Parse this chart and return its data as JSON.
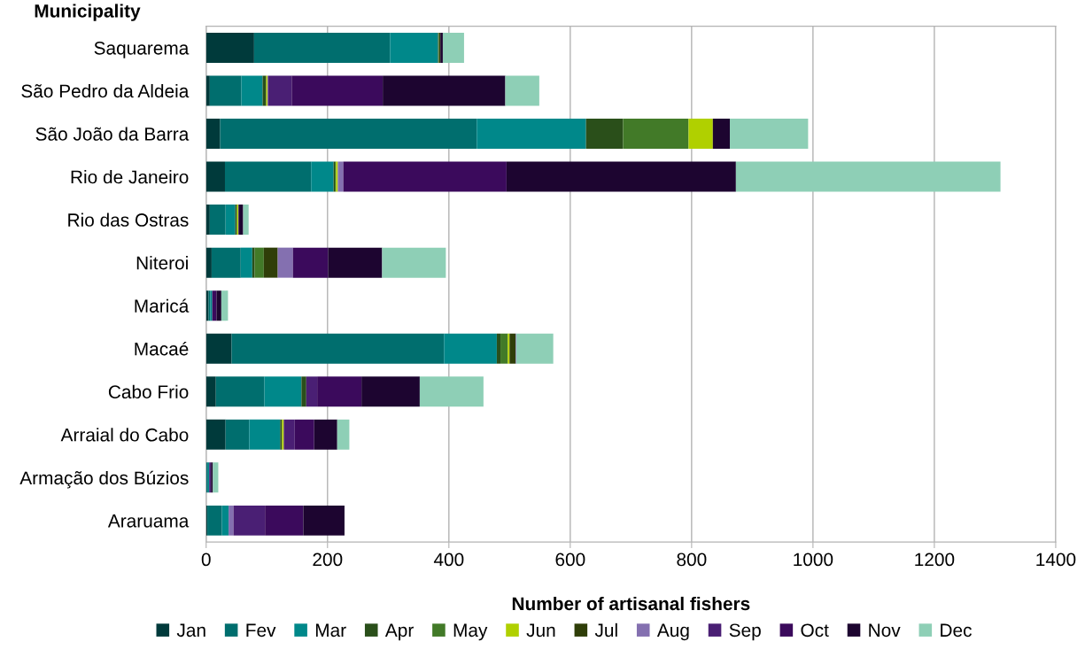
{
  "chart_data": {
    "type": "bar",
    "orientation": "horizontal",
    "stacked": true,
    "xlabel": "Number of artisanal fishers",
    "ylabel": "Municipality",
    "categories": [
      "Saquarema",
      "São Pedro da Aldeia",
      "São João da Barra",
      "Rio de Janeiro",
      "Rio das Ostras",
      "Niteroi",
      "Maricá",
      "Macaé",
      "Cabo Frio",
      "Arraial do Cabo",
      "Armação dos Búzios",
      "Araruama"
    ],
    "series": [
      {
        "name": "Jan",
        "color": "#003a3b",
        "values": [
          79,
          6,
          23,
          31,
          6,
          9,
          4,
          42,
          16,
          32,
          0,
          2
        ]
      },
      {
        "name": "Fev",
        "color": "#006e6e",
        "values": [
          224,
          52,
          423,
          142,
          26,
          48,
          3,
          350,
          80,
          39,
          3,
          24
        ]
      },
      {
        "name": "Mar",
        "color": "#00888a",
        "values": [
          79,
          35,
          180,
          37,
          16,
          19,
          3,
          87,
          61,
          51,
          2,
          11
        ]
      },
      {
        "name": "Apr",
        "color": "#2a4f1a",
        "values": [
          1,
          6,
          61,
          2,
          2,
          4,
          0,
          6,
          8,
          3,
          0,
          0
        ]
      },
      {
        "name": "May",
        "color": "#427a28",
        "values": [
          1,
          0,
          108,
          2,
          1,
          15,
          0,
          12,
          0,
          0,
          0,
          0
        ]
      },
      {
        "name": "Jun",
        "color": "#b0d000",
        "values": [
          0,
          2,
          40,
          3,
          2,
          0,
          0,
          3,
          0,
          3,
          0,
          0
        ]
      },
      {
        "name": "Jul",
        "color": "#2f3e08",
        "values": [
          2,
          0,
          0,
          0,
          0,
          23,
          0,
          10,
          0,
          0,
          0,
          0
        ]
      },
      {
        "name": "Aug",
        "color": "#8470b0",
        "values": [
          0,
          1,
          0,
          9,
          0,
          25,
          0,
          1,
          0,
          0,
          0,
          8
        ]
      },
      {
        "name": "Sep",
        "color": "#4a1f74",
        "values": [
          0,
          39,
          0,
          0,
          0,
          0,
          0,
          0,
          18,
          18,
          3,
          52
        ]
      },
      {
        "name": "Oct",
        "color": "#3b0a5c",
        "values": [
          0,
          150,
          0,
          269,
          1,
          58,
          7,
          0,
          73,
          32,
          0,
          63
        ]
      },
      {
        "name": "Nov",
        "color": "#1d0530",
        "values": [
          4,
          202,
          28,
          378,
          7,
          89,
          8,
          0,
          96,
          38,
          3,
          68
        ]
      },
      {
        "name": "Dec",
        "color": "#8ecfb6",
        "values": [
          35,
          56,
          129,
          436,
          9,
          105,
          11,
          61,
          105,
          20,
          9,
          0
        ]
      }
    ],
    "xlim": [
      0,
      1400
    ],
    "xticks": [
      0,
      200,
      400,
      600,
      800,
      1000,
      1200,
      1400
    ],
    "grid": "x",
    "legend": "bottom"
  }
}
